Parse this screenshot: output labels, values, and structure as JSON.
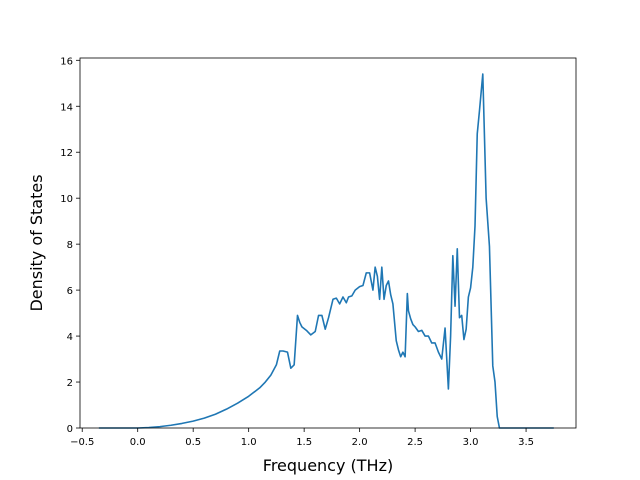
{
  "chart_data": {
    "type": "line",
    "title": "",
    "xlabel": "Frequency (THz)",
    "ylabel": "Density of States",
    "xlim": [
      -0.52,
      3.95
    ],
    "ylim": [
      0,
      16.1
    ],
    "xticks": [
      -0.5,
      0.0,
      0.5,
      1.0,
      1.5,
      2.0,
      2.5,
      3.0,
      3.5
    ],
    "xtick_labels": [
      "−0.5",
      "0.0",
      "0.5",
      "1.0",
      "1.5",
      "2.0",
      "2.5",
      "3.0",
      "3.5"
    ],
    "yticks": [
      0,
      2,
      4,
      6,
      8,
      10,
      12,
      14,
      16
    ],
    "ytick_labels": [
      "0",
      "2",
      "4",
      "6",
      "8",
      "10",
      "12",
      "14",
      "16"
    ],
    "grid": false,
    "color": "#1f77b4",
    "series": [
      {
        "x": [
          -0.35,
          0.0,
          0.1,
          0.2,
          0.3,
          0.4,
          0.5,
          0.6,
          0.7,
          0.8,
          0.9,
          1.0,
          1.1,
          1.15,
          1.2,
          1.25,
          1.28,
          1.31,
          1.35,
          1.38,
          1.41,
          1.44,
          1.46,
          1.48,
          1.52,
          1.56,
          1.6,
          1.63,
          1.66,
          1.69,
          1.72,
          1.76,
          1.79,
          1.82,
          1.85,
          1.88,
          1.9,
          1.93,
          1.96,
          2.0,
          2.03,
          2.06,
          2.09,
          2.12,
          2.14,
          2.16,
          2.18,
          2.2,
          2.22,
          2.24,
          2.26,
          2.28,
          2.3,
          2.33,
          2.35,
          2.37,
          2.39,
          2.41,
          2.43,
          2.44,
          2.46,
          2.48,
          2.5,
          2.53,
          2.56,
          2.59,
          2.62,
          2.65,
          2.68,
          2.71,
          2.74,
          2.77,
          2.8,
          2.82,
          2.84,
          2.86,
          2.88,
          2.9,
          2.92,
          2.94,
          2.96,
          2.98,
          3.0,
          3.02,
          3.04,
          3.06,
          3.08,
          3.11,
          3.14,
          3.17,
          3.2,
          3.22,
          3.24,
          3.26,
          3.28,
          3.3,
          3.32,
          3.34,
          3.36,
          3.38,
          3.42,
          3.5,
          3.75
        ],
        "y": [
          0,
          0,
          0.02,
          0.06,
          0.12,
          0.2,
          0.3,
          0.43,
          0.6,
          0.82,
          1.08,
          1.38,
          1.75,
          2.0,
          2.3,
          2.75,
          3.35,
          3.35,
          3.3,
          2.6,
          2.75,
          4.9,
          4.6,
          4.4,
          4.25,
          4.05,
          4.2,
          4.9,
          4.9,
          4.3,
          4.8,
          5.6,
          5.65,
          5.4,
          5.7,
          5.45,
          5.7,
          5.75,
          6.0,
          6.15,
          6.2,
          6.75,
          6.75,
          6.0,
          7.0,
          6.6,
          5.6,
          7.0,
          5.6,
          6.2,
          6.4,
          5.8,
          5.4,
          3.8,
          3.4,
          3.1,
          3.3,
          3.1,
          5.85,
          5.1,
          4.75,
          4.5,
          4.4,
          4.2,
          4.25,
          4.0,
          4.0,
          3.7,
          3.7,
          3.3,
          3.0,
          4.35,
          1.7,
          4.0,
          7.5,
          5.3,
          7.8,
          4.8,
          4.9,
          3.85,
          4.3,
          5.7,
          6.1,
          7.0,
          8.8,
          12.8,
          13.8,
          15.4,
          10.0,
          7.9,
          2.7,
          2.0,
          0.5,
          0,
          0,
          0,
          0,
          0,
          0,
          0,
          0,
          0,
          0
        ]
      }
    ]
  }
}
